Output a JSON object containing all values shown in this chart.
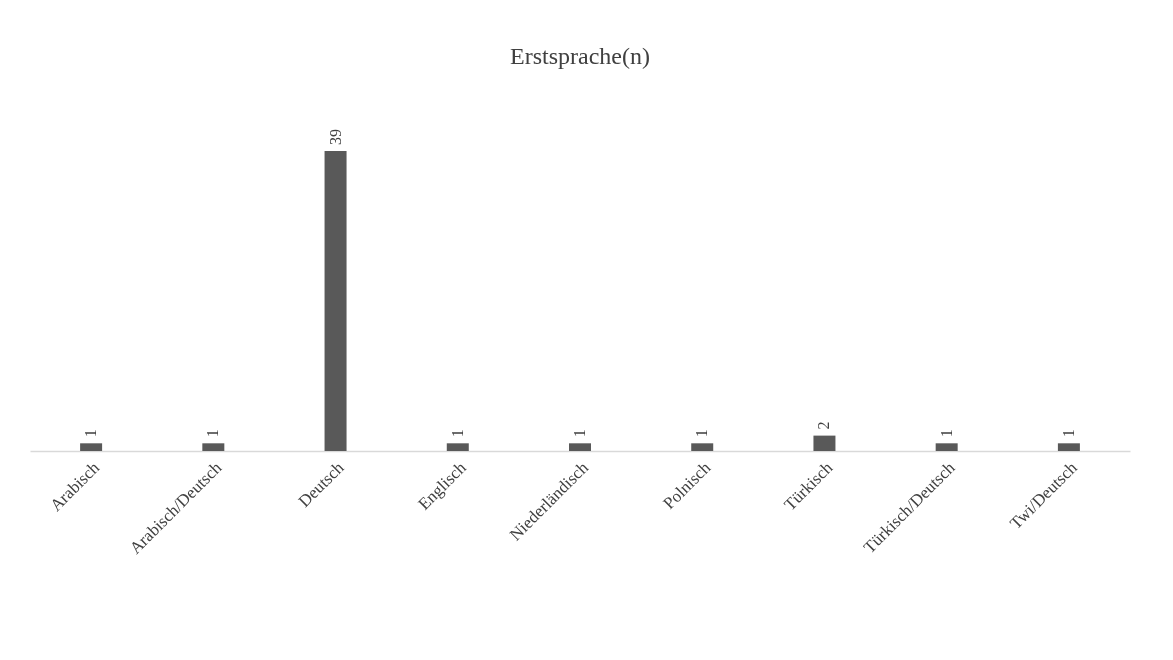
{
  "chart_data": {
    "type": "bar",
    "title": "Erstsprache(n)",
    "categories": [
      "Arabisch",
      "Arabisch/Deutsch",
      "Deutsch",
      "Englisch",
      "Niederländisch",
      "Polnisch",
      "Türkisch",
      "Türkisch/Deutsch",
      "Twi/Deutsch"
    ],
    "values": [
      1,
      1,
      39,
      1,
      1,
      1,
      2,
      1,
      1
    ],
    "color": "#595959",
    "data_labels": true
  }
}
